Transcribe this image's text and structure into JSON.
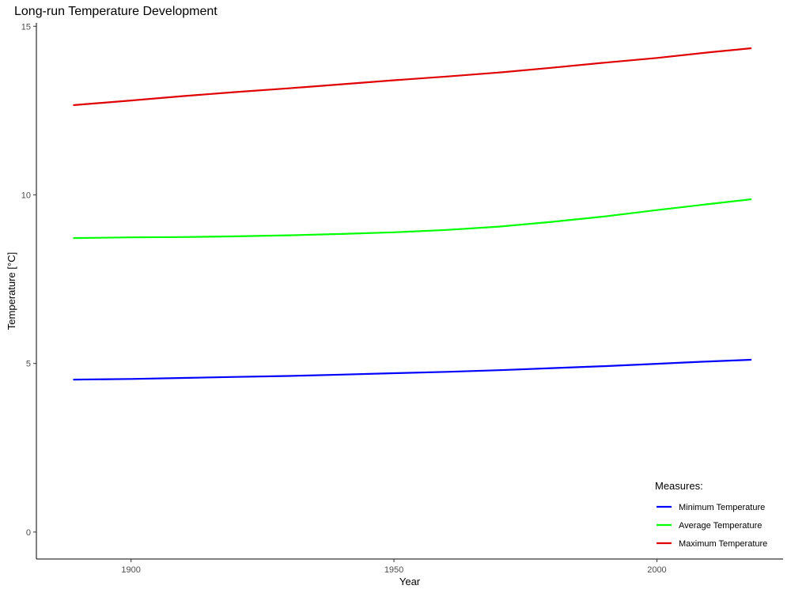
{
  "chart_data": {
    "type": "line",
    "title": "Long-run Temperature Development",
    "xlabel": "Year",
    "ylabel": "Temperature [°C]",
    "xlim": [
      1882,
      2024
    ],
    "ylim": [
      -0.8,
      15.1
    ],
    "x_ticks": [
      1900,
      1950,
      2000
    ],
    "y_ticks": [
      0,
      5,
      10,
      15
    ],
    "grid": false,
    "legend": {
      "title": "Measures:",
      "position": "bottom-right"
    },
    "x": [
      1889,
      1900,
      1910,
      1920,
      1930,
      1940,
      1950,
      1960,
      1970,
      1980,
      1990,
      2000,
      2010,
      2018
    ],
    "series": [
      {
        "name": "Minimum Temperature",
        "color": "#0000ff",
        "values": [
          4.52,
          4.54,
          4.57,
          4.6,
          4.63,
          4.67,
          4.71,
          4.75,
          4.8,
          4.86,
          4.92,
          4.99,
          5.06,
          5.11
        ]
      },
      {
        "name": "Average Temperature",
        "color": "#00ff00",
        "values": [
          8.72,
          8.74,
          8.75,
          8.77,
          8.8,
          8.84,
          8.89,
          8.96,
          9.06,
          9.2,
          9.36,
          9.55,
          9.73,
          9.87
        ]
      },
      {
        "name": "Maximum Temperature",
        "color": "#e00000",
        "values": [
          12.66,
          12.8,
          12.93,
          13.05,
          13.16,
          13.28,
          13.4,
          13.51,
          13.63,
          13.77,
          13.92,
          14.06,
          14.23,
          14.35
        ]
      }
    ]
  }
}
